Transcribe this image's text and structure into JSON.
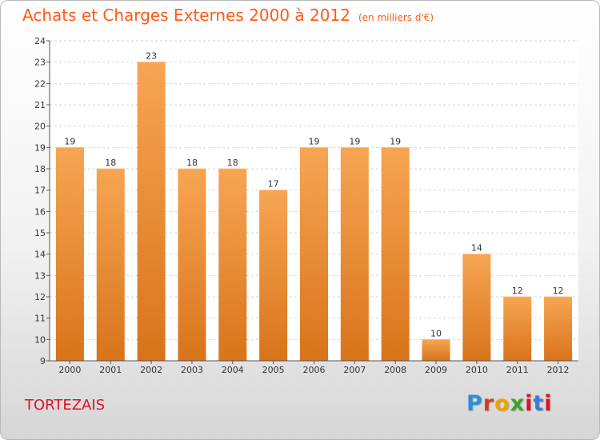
{
  "header": {
    "title": "Achats et Charges Externes 2000 à 2012",
    "unit": "(en milliers d'€)"
  },
  "footer": {
    "commune": "TORTEZAIS",
    "logo_text": "Proxiti"
  },
  "colors": {
    "title": "#ff5a17",
    "commune": "#e0102a",
    "bar_light": "#f7a553",
    "bar_dark": "#d8741a"
  },
  "chart_data": {
    "type": "bar",
    "title": "Achats et Charges Externes 2000 à 2012",
    "subtitle": "(en milliers d'€)",
    "xlabel": "",
    "ylabel": "",
    "categories": [
      "2000",
      "2001",
      "2002",
      "2003",
      "2004",
      "2005",
      "2006",
      "2007",
      "2008",
      "2009",
      "2010",
      "2011",
      "2012"
    ],
    "values": [
      19,
      18,
      23,
      18,
      18,
      17,
      19,
      19,
      19,
      10,
      14,
      12,
      12
    ],
    "data_labels": [
      "19",
      "18",
      "23",
      "18",
      "18",
      "17",
      "19",
      "19",
      "19",
      "10",
      "14",
      "12",
      "12"
    ],
    "yticks": [
      "9",
      "10",
      "11",
      "12",
      "13",
      "14",
      "15",
      "16",
      "17",
      "18",
      "19",
      "20",
      "21",
      "22",
      "23",
      "24"
    ],
    "ylim": [
      9,
      24
    ],
    "grid": true,
    "legend": "none"
  }
}
